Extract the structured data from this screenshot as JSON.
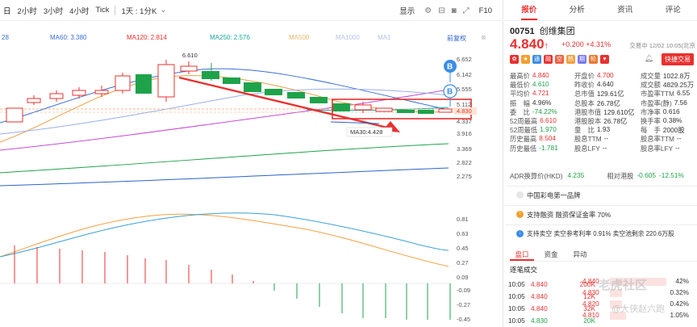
{
  "toolbar": {
    "periods": [
      "日",
      "2小时",
      "3小时",
      "4小时",
      "Tick"
    ],
    "interval": "1天 : 1分K",
    "display_label": "显示",
    "f10_label": "F10"
  },
  "ma_legend": {
    "left_value": "28",
    "ma60": "MA60: 3.380",
    "ma120": "MA120: 2.814",
    "ma250": "MA250: 2.576",
    "ma500": "MA500",
    "ma1000": "MA1000",
    "ma1": "MA1",
    "pre_adjust": "前复权"
  },
  "main_chart": {
    "y_ticks": [
      "6.652",
      "6.142",
      "5.555",
      "5.112",
      "4.830",
      "4.337",
      "3.916",
      "3.369",
      "2.822",
      "2.275"
    ],
    "high_label": "6.610",
    "ma30_label": "MA30:4.428",
    "marker_b": "B"
  },
  "sub_chart": {
    "y_ticks": [
      "0.81",
      "0.63",
      "0.45",
      "0.27",
      "0.09",
      "-0.09",
      "-0.27",
      "-0.45"
    ]
  },
  "quote_tabs": [
    "报价",
    "分析",
    "资讯",
    "评论"
  ],
  "stock": {
    "code": "00751",
    "name": "创维集团",
    "price": "4.840",
    "arrow": "↑",
    "change": "+0.200",
    "change_pct": "+4.31%",
    "trade_time": "交易中 12/02 10:05(北京",
    "quick_trade": "快捷交易"
  },
  "stats": [
    [
      [
        "最高价",
        "4.840",
        "red"
      ],
      [
        "开盘价",
        "4.700",
        "red"
      ],
      [
        "成交量",
        "1022.8万",
        ""
      ]
    ],
    [
      [
        "最低价",
        "4.610",
        "green"
      ],
      [
        "昨收价",
        "4.640",
        ""
      ],
      [
        "成交额",
        "4829.25万",
        ""
      ]
    ],
    [
      [
        "平均价",
        "4.721",
        "red"
      ],
      [
        "总市值",
        "129.61亿",
        ""
      ],
      [
        "市盈率TTM",
        "6.55",
        ""
      ]
    ],
    [
      [
        "振　幅",
        "4.96%",
        ""
      ],
      [
        "总股本",
        "26.78亿",
        ""
      ],
      [
        "市盈率(静)",
        "7.56",
        ""
      ]
    ],
    [
      [
        "委　比",
        "-74.22%",
        "green"
      ],
      [
        "港股市值",
        "129.610亿",
        ""
      ],
      [
        "市净率",
        "0.616",
        ""
      ]
    ],
    [
      [
        "52周最高",
        "6.610",
        "red"
      ],
      [
        "港股股本",
        "26.78亿",
        ""
      ],
      [
        "换手率",
        "0.38%",
        ""
      ]
    ],
    [
      [
        "52周最低",
        "1.970",
        "green"
      ],
      [
        "量　比",
        "1.93",
        ""
      ],
      [
        "每　手",
        "2000股",
        ""
      ]
    ],
    [
      [
        "历史最高",
        "8.504",
        "red"
      ],
      [
        "股息TTM",
        "--",
        ""
      ],
      [
        "股息率TTM",
        "--",
        ""
      ]
    ],
    [
      [
        "历史最低",
        "-1.781",
        "green"
      ],
      [
        "股息LFY",
        "--",
        ""
      ],
      [
        "股息率LFY",
        "--",
        ""
      ]
    ]
  ],
  "adr": {
    "label": "ADR换算价(HKD)",
    "value": "4.235",
    "rel_label": "相对港股",
    "rel_value": "-0.605",
    "rel_pct": "-12.51%"
  },
  "info_rows": [
    {
      "text": "中国彩电第一品牌"
    },
    {
      "text": "支持融资  融资保证金率 70%"
    },
    {
      "text": "支持卖空  卖空参考利率 0.91%  卖空池剩余 220.6万股"
    }
  ],
  "sub_tabs": [
    "盘口",
    "资金",
    "异动"
  ],
  "tick_title": "逐笔成交",
  "ticks": [
    {
      "time": "10:05",
      "price": "4.840",
      "vol": "200K",
      "color": "red"
    },
    {
      "time": "10:05",
      "price": "4.840",
      "vol": "12K",
      "color": "red"
    },
    {
      "time": "10:05",
      "price": "4.840",
      "vol": "32K",
      "color": "red"
    },
    {
      "time": "10:05",
      "price": "4.830",
      "vol": "20K",
      "color": "green"
    }
  ],
  "orderbook": [
    {
      "price": "4.840",
      "pct": "42%",
      "color": "red",
      "fill": 0.7
    },
    {
      "price": "4.830",
      "pct": "0.32%",
      "color": "red",
      "fill": 0.15
    },
    {
      "price": "4.820",
      "pct": "0.42%",
      "color": "red",
      "fill": 0.15
    },
    {
      "price": "4.810",
      "pct": "1.05%",
      "color": "red",
      "fill": 0.2
    }
  ],
  "watermark": "老虎社区",
  "watermark_author": "@大侠赵六跑"
}
